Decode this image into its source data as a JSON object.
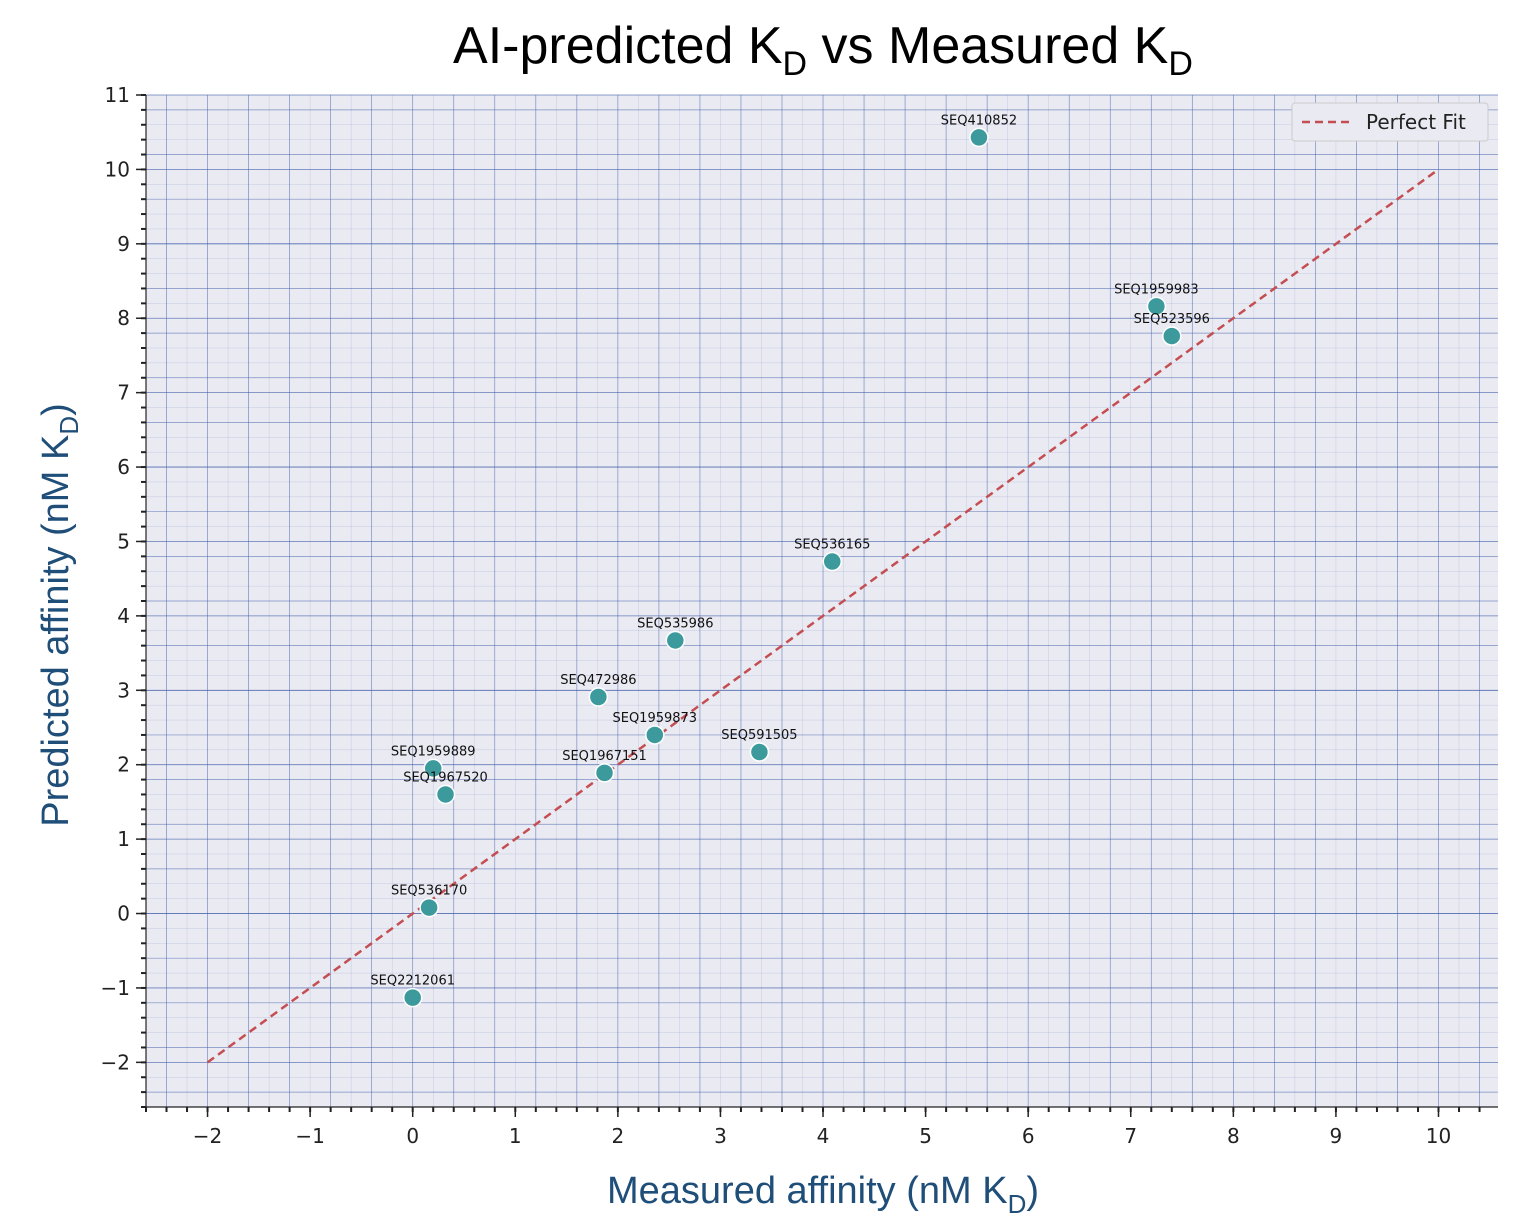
{
  "chart_data": {
    "type": "scatter",
    "title": {
      "main": "AI-predicted K",
      "sub1": "D",
      "mid": " vs Measured K",
      "sub2": "D"
    },
    "xlabel": {
      "main": "Measured affinity (nM K",
      "sub": "D",
      "end": ")"
    },
    "ylabel": {
      "main": "Predicted affinity (nM K",
      "sub": "D",
      "end": ")"
    },
    "xlim": [
      -2.6,
      10.58
    ],
    "ylim": [
      -2.6,
      11.0
    ],
    "xticks": [
      -2,
      -1,
      0,
      1,
      2,
      3,
      4,
      5,
      6,
      7,
      8,
      9,
      10
    ],
    "xtick_labels": [
      "−2",
      "−1",
      "0",
      "1",
      "2",
      "3",
      "4",
      "5",
      "6",
      "7",
      "8",
      "9",
      "10"
    ],
    "yticks": [
      -2,
      -1,
      0,
      1,
      2,
      3,
      4,
      5,
      6,
      7,
      8,
      9,
      10,
      11
    ],
    "ytick_labels": [
      "−2",
      "−1",
      "0",
      "1",
      "2",
      "3",
      "4",
      "5",
      "6",
      "7",
      "8",
      "9",
      "10",
      "11"
    ],
    "grid": true,
    "legend": {
      "position": "top-right",
      "entries": [
        "Perfect Fit"
      ]
    },
    "reference_line": {
      "name": "Perfect Fit",
      "x": [
        -2,
        10
      ],
      "y": [
        -2,
        10
      ],
      "style": "dashed",
      "color": "#c44e52"
    },
    "points": [
      {
        "label": "SEQ410852",
        "x": 5.52,
        "y": 10.43
      },
      {
        "label": "SEQ1959983",
        "x": 7.25,
        "y": 8.16
      },
      {
        "label": "SEQ523596",
        "x": 7.4,
        "y": 7.76
      },
      {
        "label": "SEQ536165",
        "x": 4.09,
        "y": 4.73
      },
      {
        "label": "SEQ535986",
        "x": 2.56,
        "y": 3.67
      },
      {
        "label": "SEQ472986",
        "x": 1.81,
        "y": 2.91
      },
      {
        "label": "SEQ1959873",
        "x": 2.36,
        "y": 2.4
      },
      {
        "label": "SEQ591505",
        "x": 3.38,
        "y": 2.17
      },
      {
        "label": "SEQ1967151",
        "x": 1.87,
        "y": 1.89
      },
      {
        "label": "SEQ1959889",
        "x": 0.2,
        "y": 1.95
      },
      {
        "label": "SEQ1967520",
        "x": 0.32,
        "y": 1.6
      },
      {
        "label": "SEQ536170",
        "x": 0.16,
        "y": 0.08
      },
      {
        "label": "SEQ2212061",
        "x": 0.0,
        "y": -1.13
      }
    ],
    "colors": {
      "points": "#3d9a9c",
      "reference": "#c44e52",
      "background": "#eaeaf2",
      "grid_major": "#3b5aa8",
      "axis_label": "#1f4e79"
    }
  }
}
